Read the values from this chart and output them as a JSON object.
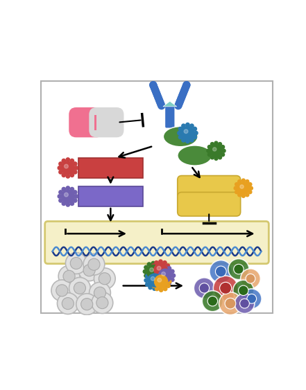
{
  "fig_width": 4.41,
  "fig_height": 5.63,
  "dpi": 100,
  "bg_color": "#ffffff",
  "border_color": "#b0b0b0",
  "antibody_color": "#3a6fc4",
  "antibody_triangle_color": "#7ecec4",
  "pill_pink": "#f07090",
  "pill_gray": "#d8d8d8",
  "red_box_color": "#c94040",
  "purple_box_color": "#7b68c8",
  "green_protein_color": "#4a8a3a",
  "yellow_box_color": "#e8c84a",
  "dna_box_color": "#f5f0c8",
  "dna_box_edge": "#d4c870",
  "dna_color1": "#1a3a8a",
  "dna_color2": "#4a8ad0",
  "virus_blue": "#2a7ab0",
  "virus_red": "#c84040",
  "virus_green": "#3a7a2a",
  "virus_purple": "#7060b0",
  "virus_orange": "#e8a020",
  "virus_teal": "#2a8a80"
}
